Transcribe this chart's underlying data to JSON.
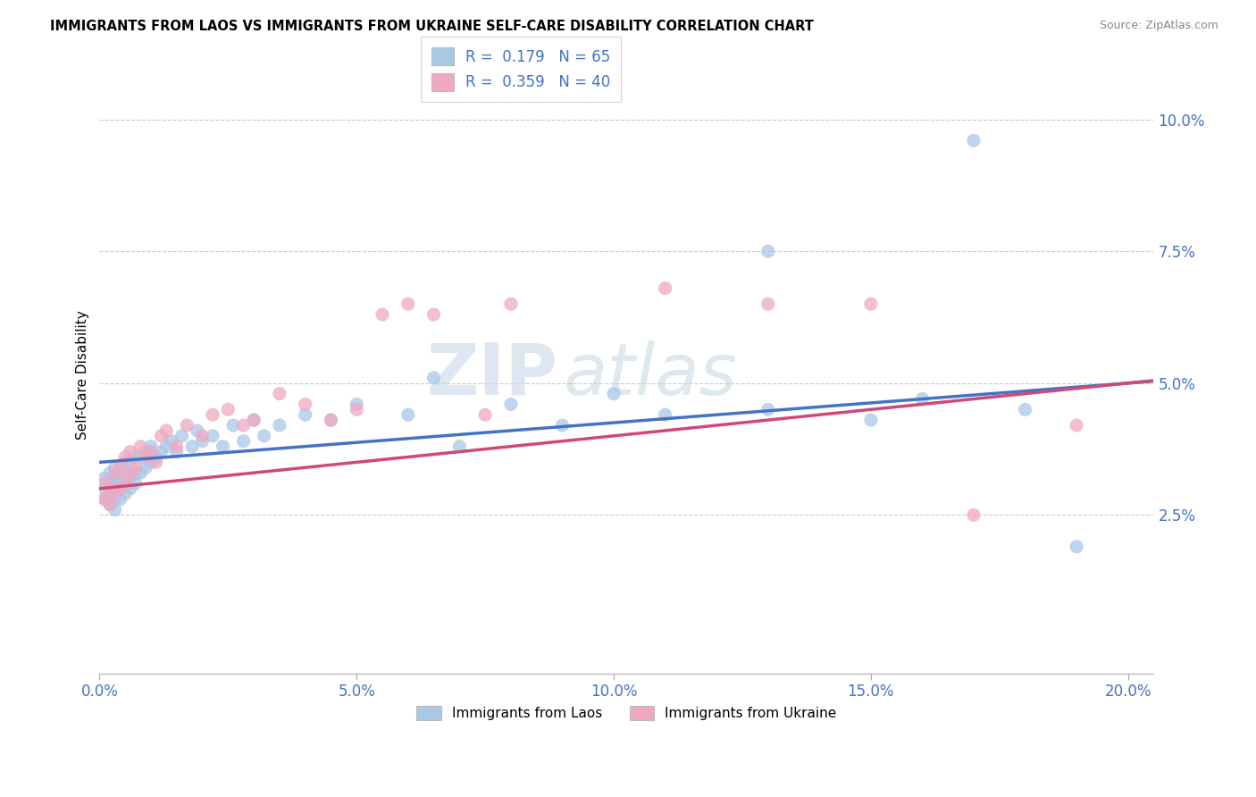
{
  "title": "IMMIGRANTS FROM LAOS VS IMMIGRANTS FROM UKRAINE SELF-CARE DISABILITY CORRELATION CHART",
  "source": "Source: ZipAtlas.com",
  "ylabel": "Self-Care Disability",
  "xlim": [
    0.0,
    0.205
  ],
  "ylim": [
    -0.005,
    0.108
  ],
  "xticks": [
    0.0,
    0.05,
    0.1,
    0.15,
    0.2
  ],
  "xticklabels": [
    "0.0%",
    "5.0%",
    "10.0%",
    "15.0%",
    "20.0%"
  ],
  "ytick_vals": [
    0.0,
    0.025,
    0.05,
    0.075,
    0.1
  ],
  "ytick_labels": [
    "",
    "2.5%",
    "5.0%",
    "7.5%",
    "10.0%"
  ],
  "laos_color": "#a8c8e8",
  "ukraine_color": "#f0a8c0",
  "laos_line_color": "#4472c4",
  "ukraine_line_color": "#d04878",
  "laos_R": 0.179,
  "laos_N": 65,
  "ukraine_R": 0.359,
  "ukraine_N": 40,
  "watermark_zip": "ZIP",
  "watermark_atlas": "atlas",
  "tick_color": "#4472c4",
  "grid_color": "#cccccc",
  "laos_x": [
    0.001,
    0.001,
    0.001,
    0.002,
    0.002,
    0.002,
    0.002,
    0.003,
    0.003,
    0.003,
    0.003,
    0.003,
    0.004,
    0.004,
    0.004,
    0.004,
    0.005,
    0.005,
    0.005,
    0.005,
    0.006,
    0.006,
    0.006,
    0.007,
    0.007,
    0.007,
    0.008,
    0.008,
    0.009,
    0.009,
    0.01,
    0.01,
    0.011,
    0.012,
    0.013,
    0.014,
    0.015,
    0.016,
    0.018,
    0.019,
    0.02,
    0.022,
    0.024,
    0.026,
    0.028,
    0.03,
    0.032,
    0.035,
    0.04,
    0.045,
    0.05,
    0.06,
    0.065,
    0.07,
    0.08,
    0.09,
    0.1,
    0.11,
    0.13,
    0.15,
    0.16,
    0.17,
    0.18,
    0.19,
    0.13
  ],
  "laos_y": [
    0.028,
    0.03,
    0.032,
    0.027,
    0.029,
    0.031,
    0.033,
    0.026,
    0.028,
    0.03,
    0.032,
    0.034,
    0.028,
    0.03,
    0.032,
    0.034,
    0.029,
    0.031,
    0.033,
    0.035,
    0.03,
    0.032,
    0.035,
    0.031,
    0.033,
    0.036,
    0.033,
    0.036,
    0.034,
    0.037,
    0.035,
    0.038,
    0.036,
    0.037,
    0.038,
    0.039,
    0.037,
    0.04,
    0.038,
    0.041,
    0.039,
    0.04,
    0.038,
    0.042,
    0.039,
    0.043,
    0.04,
    0.042,
    0.044,
    0.043,
    0.046,
    0.044,
    0.051,
    0.038,
    0.046,
    0.042,
    0.048,
    0.044,
    0.045,
    0.043,
    0.047,
    0.096,
    0.045,
    0.019,
    0.075
  ],
  "ukraine_x": [
    0.001,
    0.001,
    0.002,
    0.002,
    0.003,
    0.003,
    0.004,
    0.004,
    0.005,
    0.005,
    0.006,
    0.006,
    0.007,
    0.008,
    0.009,
    0.01,
    0.011,
    0.012,
    0.013,
    0.015,
    0.017,
    0.02,
    0.022,
    0.025,
    0.028,
    0.03,
    0.035,
    0.04,
    0.045,
    0.05,
    0.055,
    0.06,
    0.065,
    0.075,
    0.08,
    0.11,
    0.13,
    0.15,
    0.17,
    0.19
  ],
  "ukraine_y": [
    0.028,
    0.031,
    0.027,
    0.03,
    0.029,
    0.033,
    0.03,
    0.034,
    0.031,
    0.036,
    0.033,
    0.037,
    0.034,
    0.038,
    0.036,
    0.037,
    0.035,
    0.04,
    0.041,
    0.038,
    0.042,
    0.04,
    0.044,
    0.045,
    0.042,
    0.043,
    0.048,
    0.046,
    0.043,
    0.045,
    0.063,
    0.065,
    0.063,
    0.044,
    0.065,
    0.068,
    0.065,
    0.065,
    0.025,
    0.042
  ]
}
